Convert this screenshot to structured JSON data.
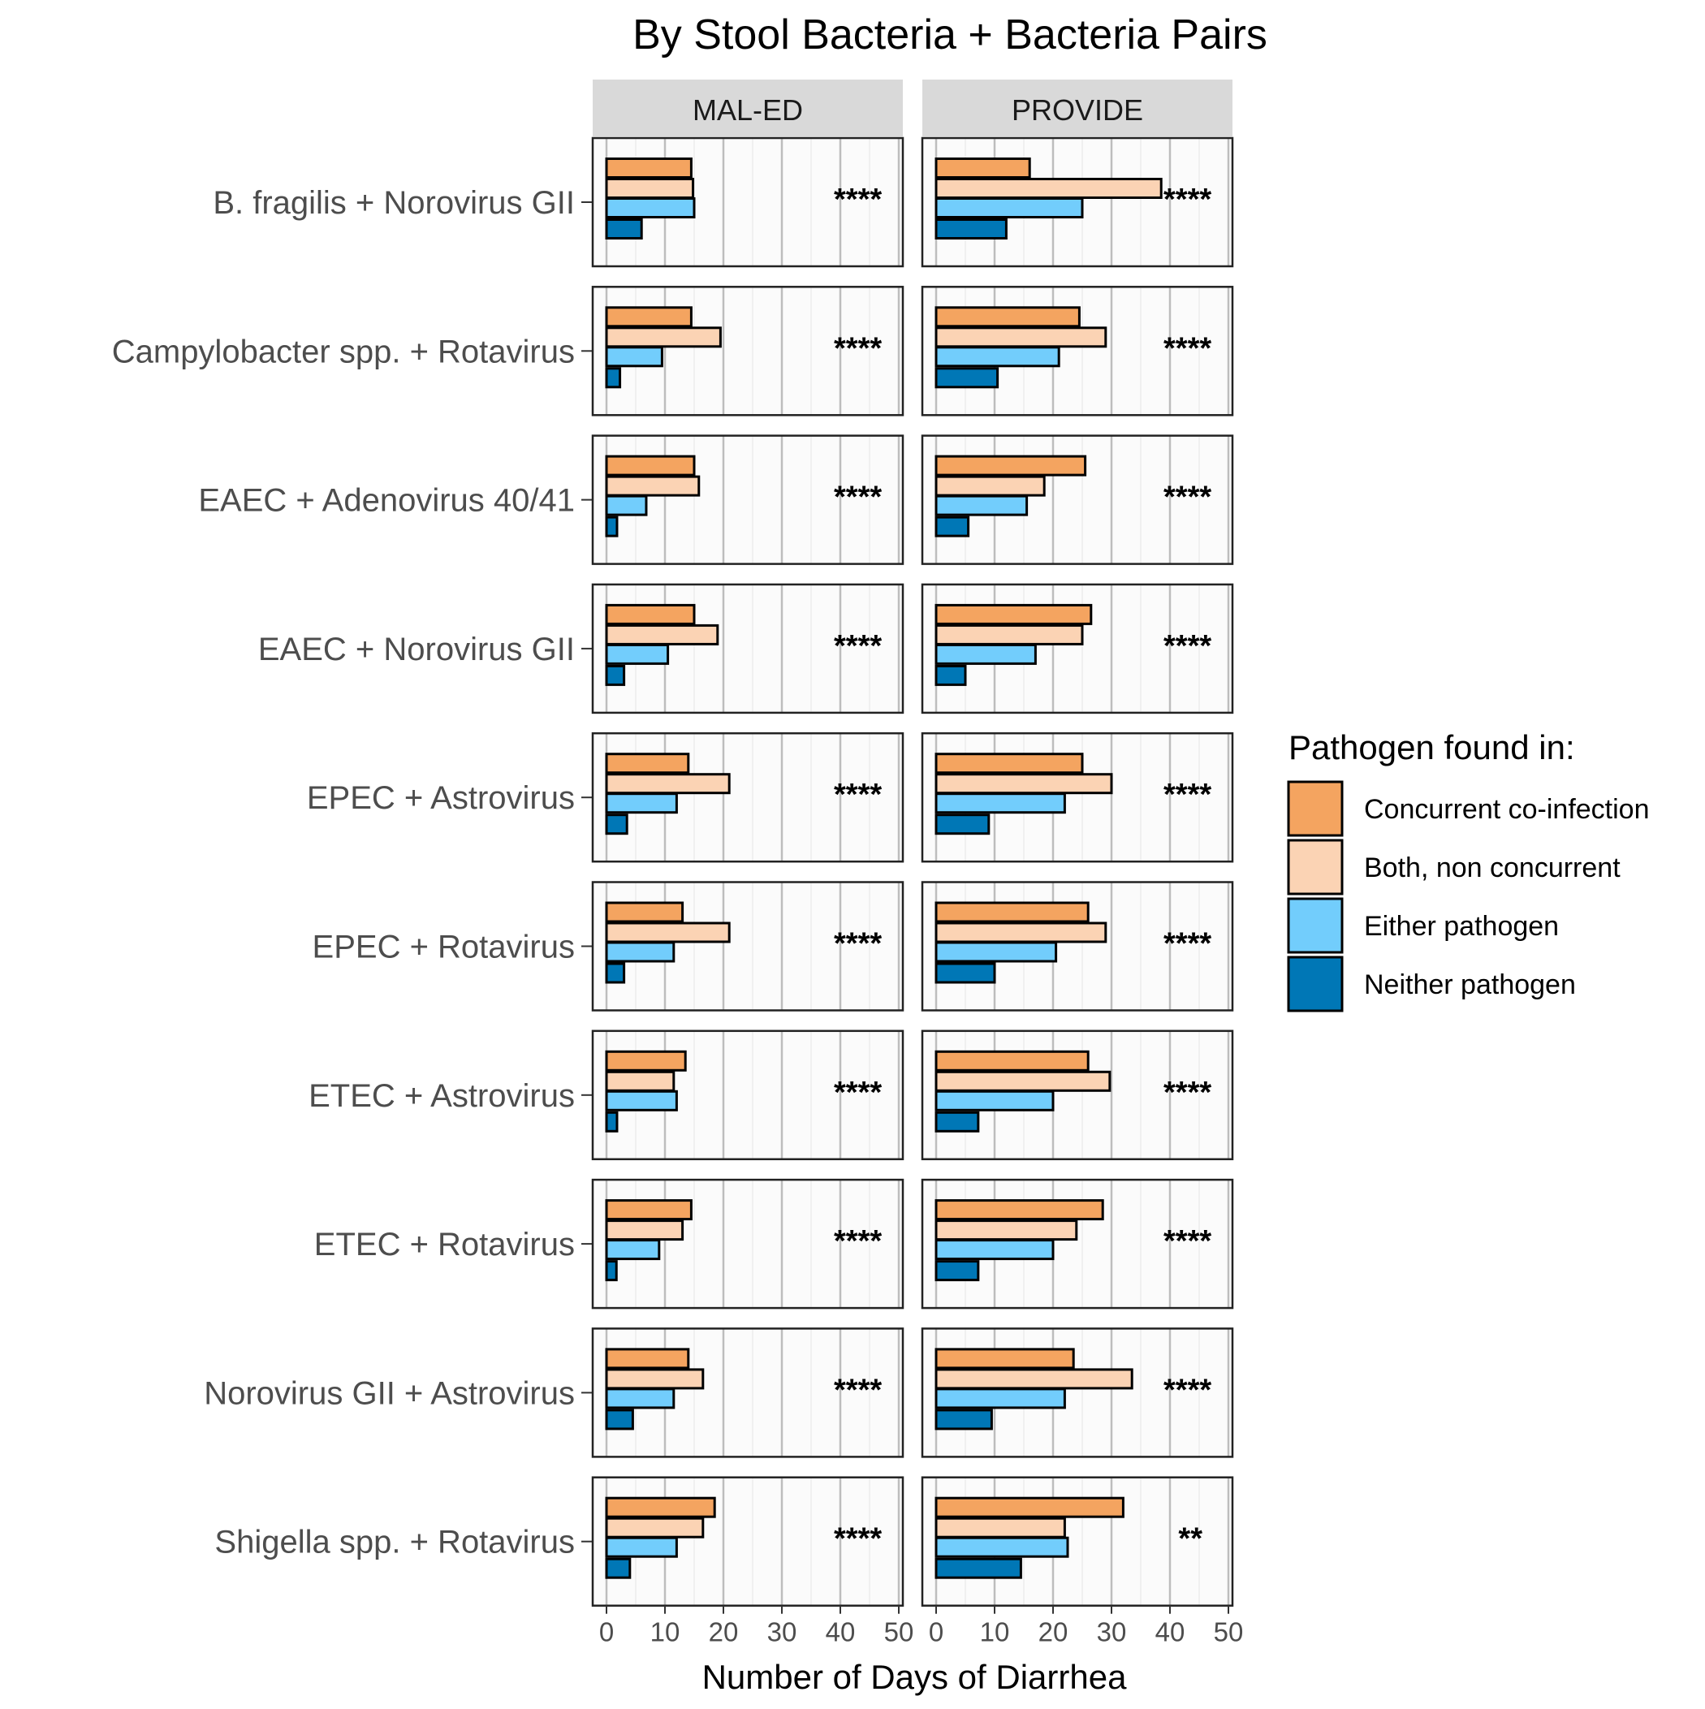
{
  "chart_data": {
    "type": "bar",
    "orientation": "horizontal",
    "title": "By Stool Bacteria + Bacteria Pairs",
    "xlabel": "Number of Days of Diarrhea",
    "ylabel": "",
    "xlim": [
      0,
      50
    ],
    "x_ticks": [
      "0",
      "10",
      "20",
      "30",
      "40",
      "50"
    ],
    "grid": true,
    "facets": [
      "MAL-ED",
      "PROVIDE"
    ],
    "categories": [
      "B. fragilis + Norovirus GII",
      "Campylobacter spp. + Rotavirus",
      "EAEC + Adenovirus 40/41",
      "EAEC + Norovirus GII",
      "EPEC + Astrovirus",
      "EPEC + Rotavirus",
      "ETEC + Astrovirus",
      "ETEC + Rotavirus",
      "Norovirus GII + Astrovirus",
      "Shigella spp. + Rotavirus"
    ],
    "legend": {
      "title": "Pathogen found in:",
      "position": "right",
      "entries": [
        {
          "label": "Concurrent co-infection",
          "color": "#F4A460"
        },
        {
          "label": "Both, non concurrent",
          "color": "#FBD3B4"
        },
        {
          "label": "Either pathogen",
          "color": "#72CDFC"
        },
        {
          "label": "Neither pathogen",
          "color": "#0077B6"
        }
      ]
    },
    "series": [
      {
        "name": "Concurrent co-infection",
        "facet": "MAL-ED",
        "values": [
          14.5,
          14.5,
          15,
          15,
          14,
          13,
          13.5,
          14.5,
          14,
          18.5
        ]
      },
      {
        "name": "Both, non concurrent",
        "facet": "MAL-ED",
        "values": [
          14.8,
          19.5,
          15.8,
          19,
          21,
          21,
          11.5,
          13,
          16.5,
          16.5
        ]
      },
      {
        "name": "Either pathogen",
        "facet": "MAL-ED",
        "values": [
          15,
          9.5,
          6.8,
          10.5,
          12,
          11.5,
          12,
          9,
          11.5,
          12
        ]
      },
      {
        "name": "Neither pathogen",
        "facet": "MAL-ED",
        "values": [
          6,
          2.3,
          1.8,
          3,
          3.5,
          3,
          1.8,
          1.7,
          4.5,
          4
        ]
      },
      {
        "name": "Concurrent co-infection",
        "facet": "PROVIDE",
        "values": [
          16,
          24.5,
          25.5,
          26.5,
          25,
          26,
          26,
          28.5,
          23.5,
          32
        ]
      },
      {
        "name": "Both, non concurrent",
        "facet": "PROVIDE",
        "values": [
          38.5,
          29,
          18.5,
          25,
          30,
          29,
          29.7,
          24,
          33.5,
          22
        ]
      },
      {
        "name": "Either pathogen",
        "facet": "PROVIDE",
        "values": [
          25,
          21,
          15.5,
          17,
          22,
          20.5,
          20,
          20,
          22,
          22.5
        ]
      },
      {
        "name": "Neither pathogen",
        "facet": "PROVIDE",
        "values": [
          12,
          10.5,
          5.5,
          5,
          9,
          10,
          7.2,
          7.2,
          9.5,
          14.5
        ]
      }
    ],
    "annotations": {
      "MAL-ED": [
        "****",
        "****",
        "****",
        "****",
        "****",
        "****",
        "****",
        "****",
        "****",
        "****"
      ],
      "PROVIDE": [
        "****",
        "****",
        "****",
        "****",
        "****",
        "****",
        "****",
        "****",
        "****",
        "**"
      ]
    }
  }
}
